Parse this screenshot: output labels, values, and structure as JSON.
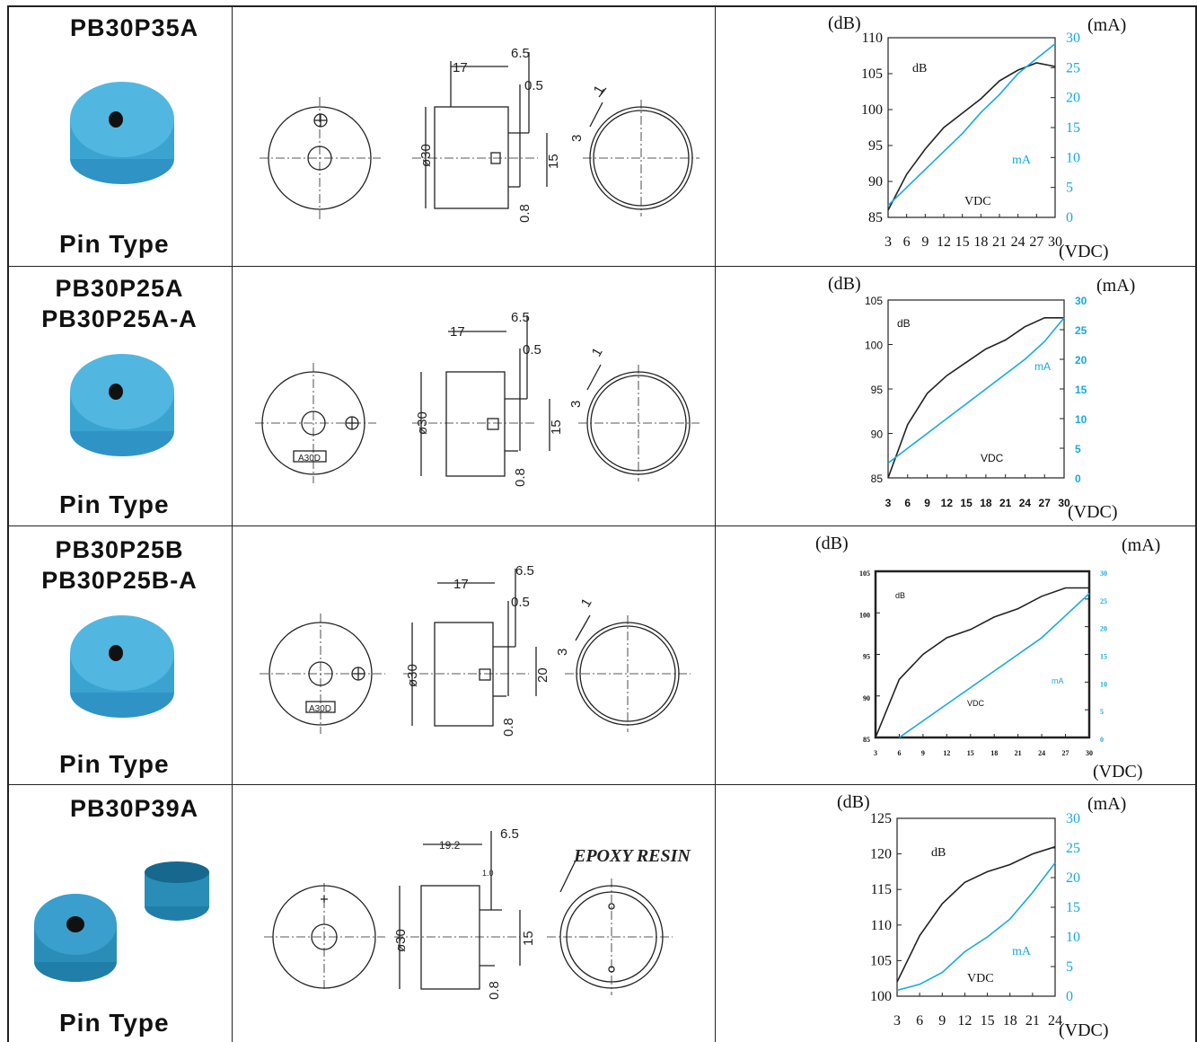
{
  "colors": {
    "line": "#222222",
    "current": "#18a8e0",
    "buzzer": "#3aa3d0",
    "buzzer_dark": "#1b7fb0"
  },
  "rows": [
    {
      "models": [
        "PB30P35A"
      ],
      "type_label": "Pin Type",
      "drawing": {
        "dims": [
          "17",
          "6.5",
          "0.5",
          "ø30",
          "15",
          "3",
          "1",
          "0.8"
        ],
        "label": ""
      },
      "chart_data": {
        "type": "line",
        "y_unit_left": "(dB)",
        "y_unit_right": "(mA)",
        "x_unit": "(VDC)",
        "x_ticks": [
          "3",
          "6",
          "9",
          "12",
          "15",
          "18",
          "21",
          "24",
          "27",
          "30"
        ],
        "y_left_ticks": [
          "85",
          "90",
          "95",
          "100",
          "105",
          "110"
        ],
        "y_right_ticks": [
          "0",
          "5",
          "10",
          "15",
          "20",
          "25",
          "30"
        ],
        "xlim": [
          3,
          30
        ],
        "ylim_left": [
          85,
          110
        ],
        "ylim_right": [
          0,
          30
        ],
        "series_labels": {
          "db": "dB",
          "ma": "mA",
          "vdc": "VDC"
        },
        "series": [
          {
            "name": "dB",
            "x": [
              3,
              6,
              9,
              12,
              15,
              18,
              21,
              24,
              27,
              30
            ],
            "y": [
              86,
              91,
              94.5,
              97.5,
              99.5,
              101.5,
              104,
              105.5,
              106.5,
              106
            ]
          },
          {
            "name": "mA",
            "x": [
              3,
              6,
              9,
              12,
              15,
              18,
              21,
              24,
              27,
              30
            ],
            "y": [
              2,
              5,
              8,
              11,
              14,
              17.5,
              20.5,
              24,
              26.5,
              29
            ]
          }
        ]
      }
    },
    {
      "models": [
        "PB30P25A",
        "PB30P25A-A"
      ],
      "type_label": "Pin Type",
      "drawing": {
        "dims": [
          "17",
          "6.5",
          "0.5",
          "ø30",
          "15",
          "3",
          "1",
          "0.8"
        ],
        "label": "A30D"
      },
      "chart_data": {
        "type": "line",
        "y_unit_left": "(dB)",
        "y_unit_right": "(mA)",
        "x_unit": "(VDC)",
        "x_ticks": [
          "3",
          "6",
          "9",
          "12",
          "15",
          "18",
          "21",
          "24",
          "27",
          "30"
        ],
        "y_left_ticks": [
          "85",
          "90",
          "95",
          "100",
          "105"
        ],
        "y_right_ticks": [
          "0",
          "5",
          "10",
          "15",
          "20",
          "25",
          "30"
        ],
        "xlim": [
          3,
          30
        ],
        "ylim_left": [
          85,
          105
        ],
        "ylim_right": [
          0,
          30
        ],
        "series_labels": {
          "db": "dB",
          "ma": "mA",
          "vdc": "VDC"
        },
        "series": [
          {
            "name": "dB",
            "x": [
              3,
              6,
              9,
              12,
              15,
              18,
              21,
              24,
              27,
              30
            ],
            "y": [
              85,
              91,
              94.5,
              96.5,
              98,
              99.5,
              100.5,
              102,
              103,
              103
            ]
          },
          {
            "name": "mA",
            "x": [
              3,
              6,
              9,
              12,
              15,
              18,
              21,
              24,
              27,
              30
            ],
            "y": [
              2.5,
              5,
              7.5,
              10,
              12.5,
              15,
              17.5,
              20,
              23,
              27
            ]
          }
        ]
      }
    },
    {
      "models": [
        "PB30P25B",
        "PB30P25B-A"
      ],
      "type_label": "Pin Type",
      "drawing": {
        "dims": [
          "17",
          "6.5",
          "0.5",
          "ø30",
          "20",
          "3",
          "1",
          "0.8"
        ],
        "label": "A30D"
      },
      "chart_data": {
        "type": "line",
        "y_unit_left": "(dB)",
        "y_unit_right": "(mA)",
        "x_unit": "(VDC)",
        "x_ticks": [
          "3",
          "6",
          "9",
          "12",
          "15",
          "18",
          "21",
          "24",
          "27",
          "30"
        ],
        "y_left_ticks": [
          "85",
          "90",
          "95",
          "100",
          "105"
        ],
        "y_right_ticks": [
          "0",
          "5",
          "10",
          "15",
          "20",
          "25",
          "30"
        ],
        "xlim": [
          3,
          30
        ],
        "ylim_left": [
          85,
          105
        ],
        "ylim_right": [
          0,
          30
        ],
        "series_labels": {
          "db": "dB",
          "ma": "mA",
          "vdc": "VDC"
        },
        "series": [
          {
            "name": "dB",
            "x": [
              3,
              6,
              9,
              12,
              15,
              18,
              21,
              24,
              27,
              30
            ],
            "y": [
              85,
              92,
              95,
              97,
              98,
              99.5,
              100.5,
              102,
              103,
              103
            ]
          },
          {
            "name": "mA",
            "x": [
              6,
              9,
              12,
              15,
              18,
              21,
              24,
              27,
              30
            ],
            "y": [
              0,
              3,
              6,
              9,
              12,
              15,
              18,
              22,
              26
            ]
          }
        ]
      }
    },
    {
      "models": [
        "PB30P39A"
      ],
      "type_label": "Pin Type",
      "drawing": {
        "dims": [
          "19.2",
          "6.5",
          "1.0",
          "ø30",
          "15",
          "",
          "",
          "0.8"
        ],
        "label": "EPOXY RESIN"
      },
      "chart_data": {
        "type": "line",
        "y_unit_left": "(dB)",
        "y_unit_right": "(mA)",
        "x_unit": "(VDC)",
        "x_ticks": [
          "3",
          "6",
          "9",
          "12",
          "15",
          "18",
          "21",
          "24"
        ],
        "y_left_ticks": [
          "100",
          "105",
          "110",
          "115",
          "120",
          "125"
        ],
        "y_right_ticks": [
          "0",
          "5",
          "10",
          "15",
          "20",
          "25",
          "30"
        ],
        "xlim": [
          3,
          24
        ],
        "ylim_left": [
          100,
          125
        ],
        "ylim_right": [
          0,
          30
        ],
        "series_labels": {
          "db": "dB",
          "ma": "mA",
          "vdc": "VDC"
        },
        "series": [
          {
            "name": "dB",
            "x": [
              3,
              6,
              9,
              12,
              15,
              18,
              21,
              24
            ],
            "y": [
              102,
              108.5,
              113,
              116,
              117.5,
              118.5,
              120,
              121
            ]
          },
          {
            "name": "mA",
            "x": [
              3,
              6,
              9,
              12,
              15,
              18,
              21,
              24
            ],
            "y": [
              1,
              2,
              4,
              7.5,
              10,
              13,
              17.5,
              22.5
            ]
          }
        ]
      }
    }
  ]
}
